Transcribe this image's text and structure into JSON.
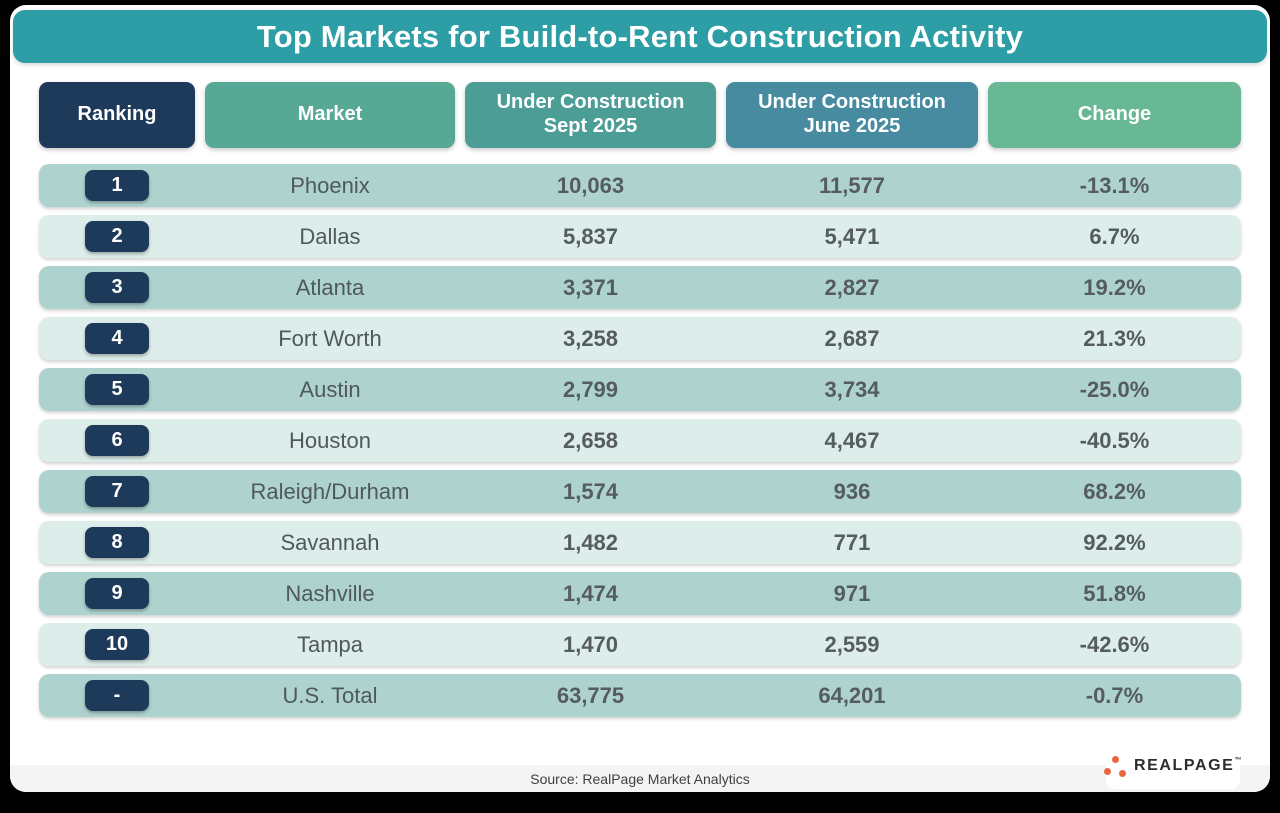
{
  "title": "Top Markets for Build-to-Rent Construction Activity",
  "table": {
    "columns": [
      {
        "label": "Ranking",
        "color": "#1d3a5a"
      },
      {
        "label": "Market",
        "color": "#57a995"
      },
      {
        "line1": "Under Construction",
        "line2": "Sept 2025",
        "color": "#4d9d97"
      },
      {
        "line1": "Under Construction",
        "line2": "June 2025",
        "color": "#478ba0"
      },
      {
        "label": "Change",
        "color": "#68b795"
      }
    ],
    "rows": [
      {
        "rank": "1",
        "market": "Phoenix",
        "sept": "10,063",
        "june": "11,577",
        "change": "-13.1%"
      },
      {
        "rank": "2",
        "market": "Dallas",
        "sept": "5,837",
        "june": "5,471",
        "change": "6.7%"
      },
      {
        "rank": "3",
        "market": "Atlanta",
        "sept": "3,371",
        "june": "2,827",
        "change": "19.2%"
      },
      {
        "rank": "4",
        "market": "Fort Worth",
        "sept": "3,258",
        "june": "2,687",
        "change": "21.3%"
      },
      {
        "rank": "5",
        "market": "Austin",
        "sept": "2,799",
        "june": "3,734",
        "change": "-25.0%"
      },
      {
        "rank": "6",
        "market": "Houston",
        "sept": "2,658",
        "june": "4,467",
        "change": "-40.5%"
      },
      {
        "rank": "7",
        "market": "Raleigh/Durham",
        "sept": "1,574",
        "june": "936",
        "change": "68.2%"
      },
      {
        "rank": "8",
        "market": "Savannah",
        "sept": "1,482",
        "june": "771",
        "change": "92.2%"
      },
      {
        "rank": "9",
        "market": "Nashville",
        "sept": "1,474",
        "june": "971",
        "change": "51.8%"
      },
      {
        "rank": "10",
        "market": "Tampa",
        "sept": "1,470",
        "june": "2,559",
        "change": "-42.6%"
      },
      {
        "rank": "-",
        "market": "U.S. Total",
        "sept": "63,775",
        "june": "64,201",
        "change": "-0.7%"
      }
    ]
  },
  "chart_data": {
    "type": "table",
    "title": "Top Markets for Build-to-Rent Construction Activity",
    "columns": [
      "Ranking",
      "Market",
      "Under Construction Sept 2025",
      "Under Construction June 2025",
      "Change"
    ],
    "rows": [
      [
        "1",
        "Phoenix",
        10063,
        11577,
        "-13.1%"
      ],
      [
        "2",
        "Dallas",
        5837,
        5471,
        "6.7%"
      ],
      [
        "3",
        "Atlanta",
        3371,
        2827,
        "19.2%"
      ],
      [
        "4",
        "Fort Worth",
        3258,
        2687,
        "21.3%"
      ],
      [
        "5",
        "Austin",
        2799,
        3734,
        "-25.0%"
      ],
      [
        "6",
        "Houston",
        2658,
        4467,
        "-40.5%"
      ],
      [
        "7",
        "Raleigh/Durham",
        1574,
        936,
        "68.2%"
      ],
      [
        "8",
        "Savannah",
        1482,
        771,
        "92.2%"
      ],
      [
        "9",
        "Nashville",
        1474,
        971,
        "51.8%"
      ],
      [
        "10",
        "Tampa",
        1470,
        2559,
        "-42.6%"
      ],
      [
        "-",
        "U.S. Total",
        63775,
        64201,
        "-0.7%"
      ]
    ]
  },
  "footer": {
    "source": "Source: RealPage Market Analytics",
    "brand": "REALPAGE",
    "trademark": "™"
  },
  "colors": {
    "background": "#000000",
    "card": "#ffffff",
    "banner": "#2d9da6",
    "rank_badge": "#1d3a5a",
    "row_odd": "#aed3cf",
    "row_even": "#ddedea",
    "cell_text": "#555c5f",
    "source_bar": "#f4f4f4",
    "logo_orange": "#e9653f"
  }
}
